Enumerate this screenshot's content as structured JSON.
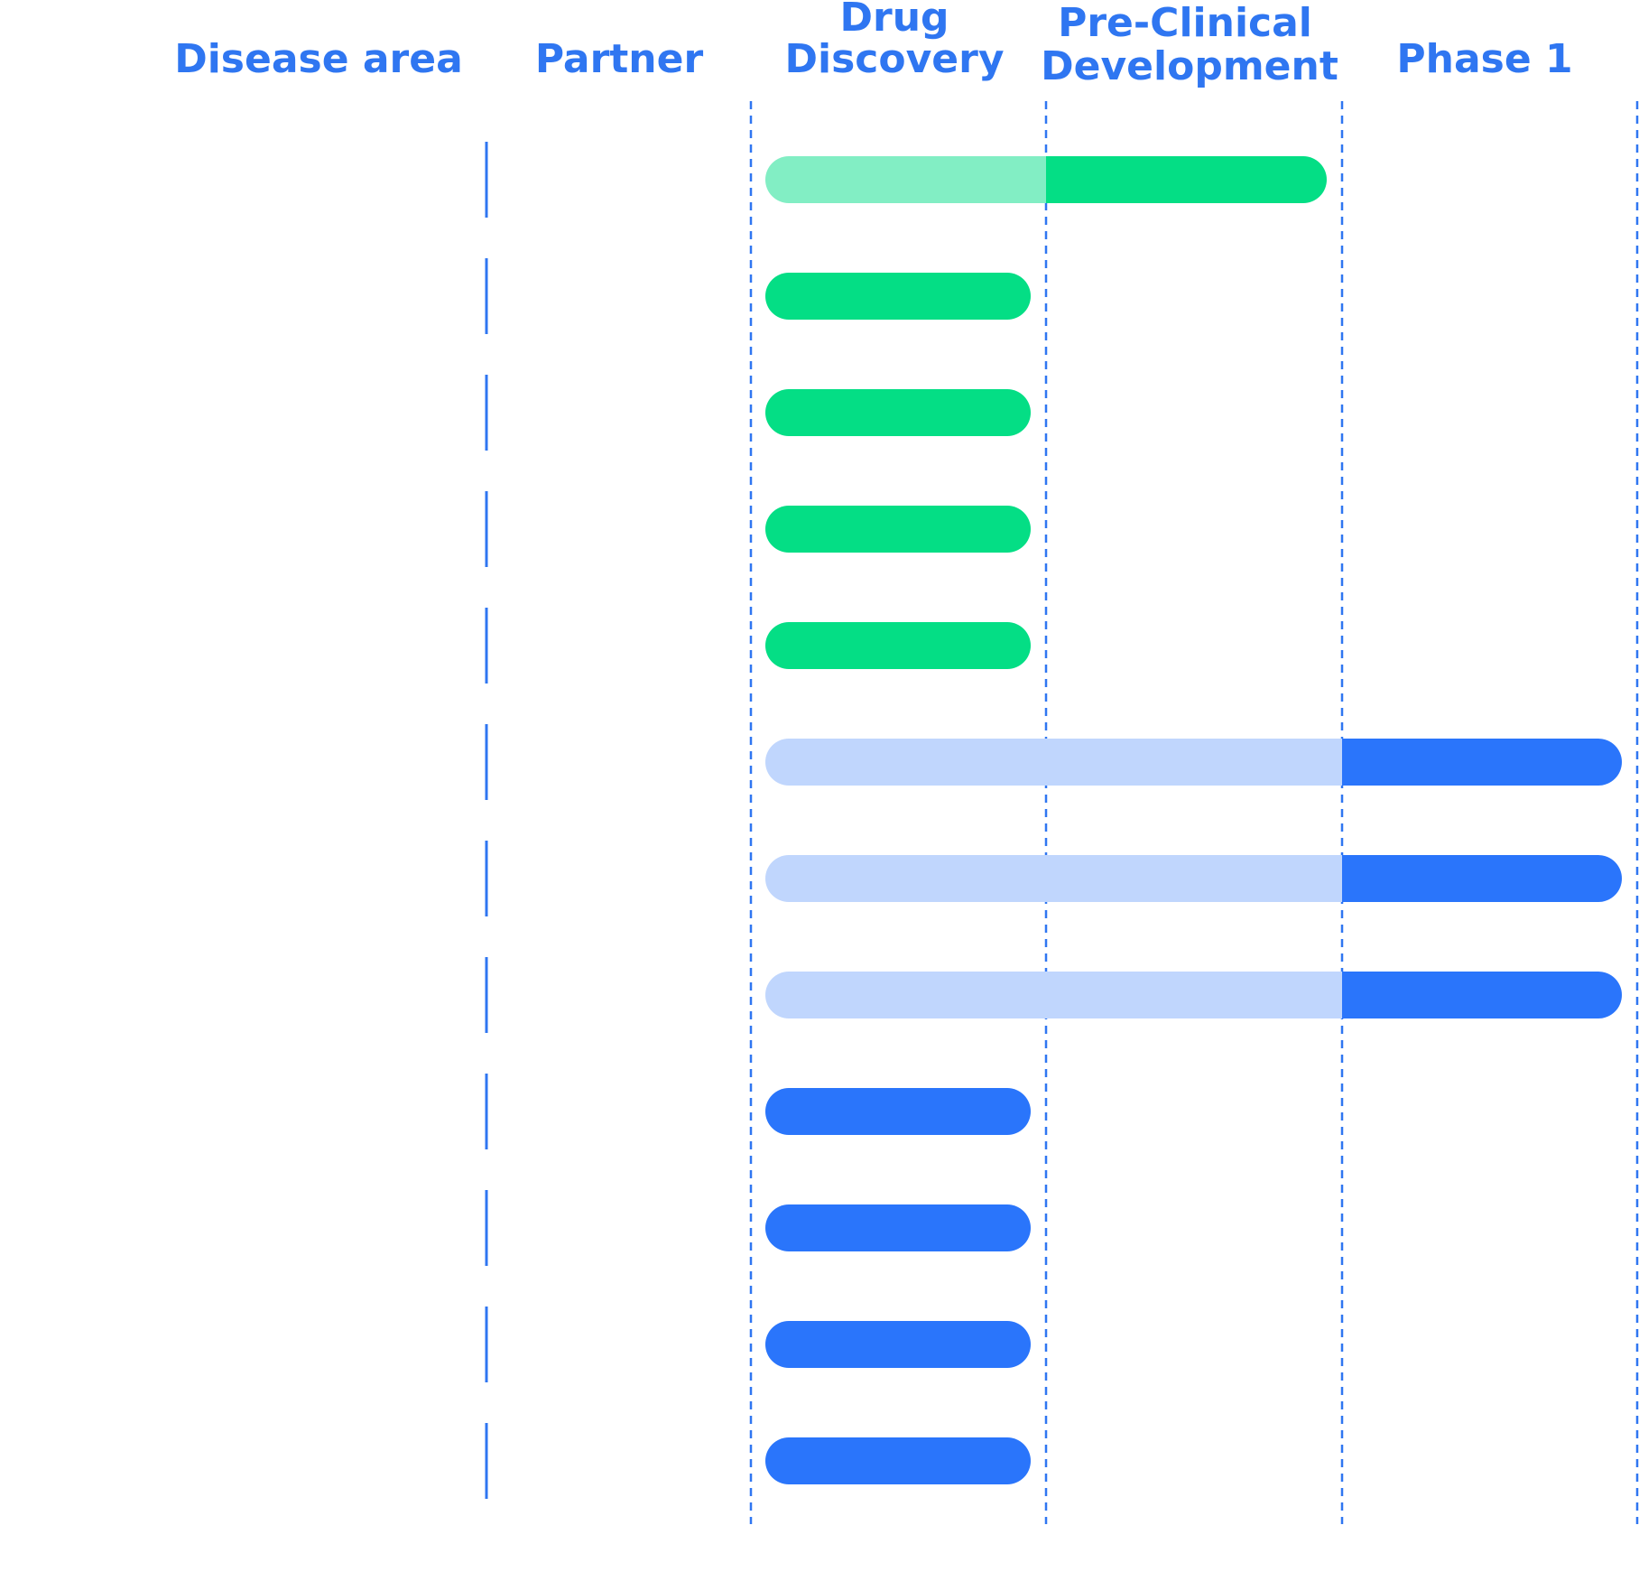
{
  "colors": {
    "text": "#2F76F1",
    "divider": "#2F76F1",
    "green": "#04DE85",
    "green_light": "#82EEC4",
    "blue": "#2A75FB",
    "blue_light": "#C0D6FD"
  },
  "headers": {
    "disease_area": "Disease area",
    "partner": "Partner",
    "drug_discovery": [
      "Drug",
      "Discovery"
    ],
    "pre_clinical": [
      "Pre-Clinical",
      "Development"
    ],
    "phase1": "Phase 1"
  },
  "chart_data": {
    "type": "bar",
    "orientation": "horizontal",
    "stages": [
      "Drug Discovery",
      "Pre-Clinical Development",
      "Phase 1"
    ],
    "rows": [
      {
        "completed_stages": 1,
        "current_stage": "Pre-Clinical Development",
        "color": "green"
      },
      {
        "completed_stages": 0,
        "current_stage": "Drug Discovery",
        "color": "green"
      },
      {
        "completed_stages": 0,
        "current_stage": "Drug Discovery",
        "color": "green"
      },
      {
        "completed_stages": 0,
        "current_stage": "Drug Discovery",
        "color": "green"
      },
      {
        "completed_stages": 0,
        "current_stage": "Drug Discovery",
        "color": "green"
      },
      {
        "completed_stages": 2,
        "current_stage": "Phase 1",
        "color": "blue"
      },
      {
        "completed_stages": 2,
        "current_stage": "Phase 1",
        "color": "blue"
      },
      {
        "completed_stages": 2,
        "current_stage": "Phase 1",
        "color": "blue"
      },
      {
        "completed_stages": 0,
        "current_stage": "Drug Discovery",
        "color": "blue"
      },
      {
        "completed_stages": 0,
        "current_stage": "Drug Discovery",
        "color": "blue"
      },
      {
        "completed_stages": 0,
        "current_stage": "Drug Discovery",
        "color": "blue"
      },
      {
        "completed_stages": 0,
        "current_stage": "Drug Discovery",
        "color": "blue"
      }
    ],
    "grid": true,
    "legend": false
  }
}
